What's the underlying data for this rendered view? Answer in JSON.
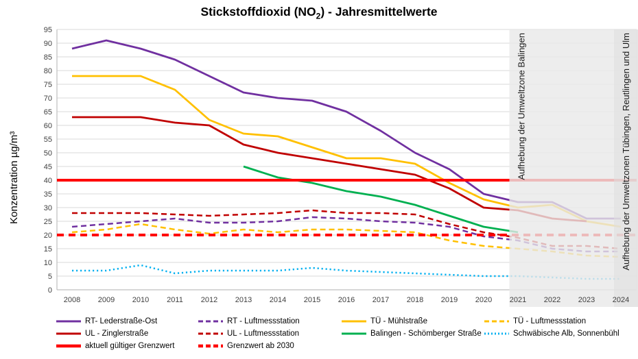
{
  "title": {
    "prefix": "Stickstoffdioxid (NO",
    "subscript": "2",
    "suffix": ") - Jahresmittelwerte",
    "full": "Stickstoffdioxid (NO2) - Jahresmittelwerte"
  },
  "chart_data": {
    "type": "line",
    "title": "Stickstoffdioxid (NO2) - Jahresmittelwerte",
    "xlabel": "",
    "ylabel": "Konzentration µg/m³",
    "ylim": [
      0,
      95
    ],
    "ytick_step": 5,
    "grid": true,
    "legend_position": "bottom",
    "x": [
      2008,
      2009,
      2010,
      2011,
      2012,
      2013,
      2014,
      2015,
      2016,
      2017,
      2018,
      2019,
      2020,
      2021,
      2022,
      2023,
      2024
    ],
    "series": [
      {
        "name": "RT- Lederstraße-Ost",
        "color": "#7030A0",
        "style": "solid",
        "width": 2.8,
        "values": [
          88,
          91,
          88,
          84,
          78,
          72,
          70,
          69,
          65,
          58,
          50,
          44,
          35,
          32,
          32,
          26,
          26
        ]
      },
      {
        "name": "RT - Luftmessstation",
        "color": "#7030A0",
        "style": "dashed",
        "width": 2.5,
        "values": [
          23,
          24,
          25,
          26,
          24.5,
          24.5,
          25,
          26.5,
          26,
          25,
          24.5,
          23,
          19.5,
          18,
          15,
          14,
          14
        ]
      },
      {
        "name": "TÜ - Mühlstraße",
        "color": "#FFC000",
        "style": "solid",
        "width": 2.8,
        "values": [
          78,
          78,
          78,
          73,
          62,
          57,
          56,
          52,
          48,
          48,
          46,
          39,
          33,
          30,
          31,
          25,
          23
        ]
      },
      {
        "name": "TÜ - Luftmessstation",
        "color": "#FFC000",
        "style": "dashed",
        "width": 2.5,
        "values": [
          21,
          22,
          24,
          22,
          20.5,
          22,
          21,
          22,
          22,
          21.5,
          21,
          18,
          16,
          15,
          14,
          12.5,
          12
        ]
      },
      {
        "name": "UL - Zinglerstraße",
        "color": "#C00000",
        "style": "solid",
        "width": 2.8,
        "values": [
          63,
          63,
          63,
          61,
          60,
          53,
          50,
          48,
          46,
          44,
          42,
          37,
          30,
          29,
          26,
          25,
          null
        ]
      },
      {
        "name": "UL - Luftmessstation",
        "color": "#C00000",
        "style": "dashed",
        "width": 2.5,
        "values": [
          28,
          28,
          28,
          27.5,
          27,
          27.5,
          28,
          29,
          28,
          28,
          27.5,
          24,
          21,
          19,
          16,
          16,
          15
        ]
      },
      {
        "name": "Balingen - Schömberger Straße",
        "color": "#00B050",
        "style": "solid",
        "width": 2.8,
        "values": [
          null,
          null,
          null,
          null,
          null,
          45,
          41,
          39,
          36,
          34,
          31,
          27,
          23,
          21,
          null,
          null,
          null
        ]
      },
      {
        "name": "Schwäbische Alb, Sonnenbühl",
        "color": "#00B0F0",
        "style": "dotted",
        "width": 2.5,
        "values": [
          7,
          7,
          9,
          6,
          7,
          7,
          7,
          8,
          7,
          6.5,
          6,
          5.5,
          5,
          5,
          4.5,
          4,
          4
        ]
      },
      {
        "name": "aktuell gültiger Grenzwert",
        "color": "#FF0000",
        "style": "solid",
        "width": 4,
        "value": 40,
        "full_width": true
      },
      {
        "name": "Grenzwert ab 2030",
        "color": "#FF0000",
        "style": "dashed",
        "width": 4,
        "value": 20,
        "full_width": true
      }
    ],
    "annotations": [
      {
        "label": "Aufhebung der Umweltzone Balingen",
        "x_start": 2020.75
      },
      {
        "label": "Aufhebung der Umweltzonen Tübingen, Reutlingen und Ulm",
        "x_start": 2023.8
      }
    ]
  }
}
